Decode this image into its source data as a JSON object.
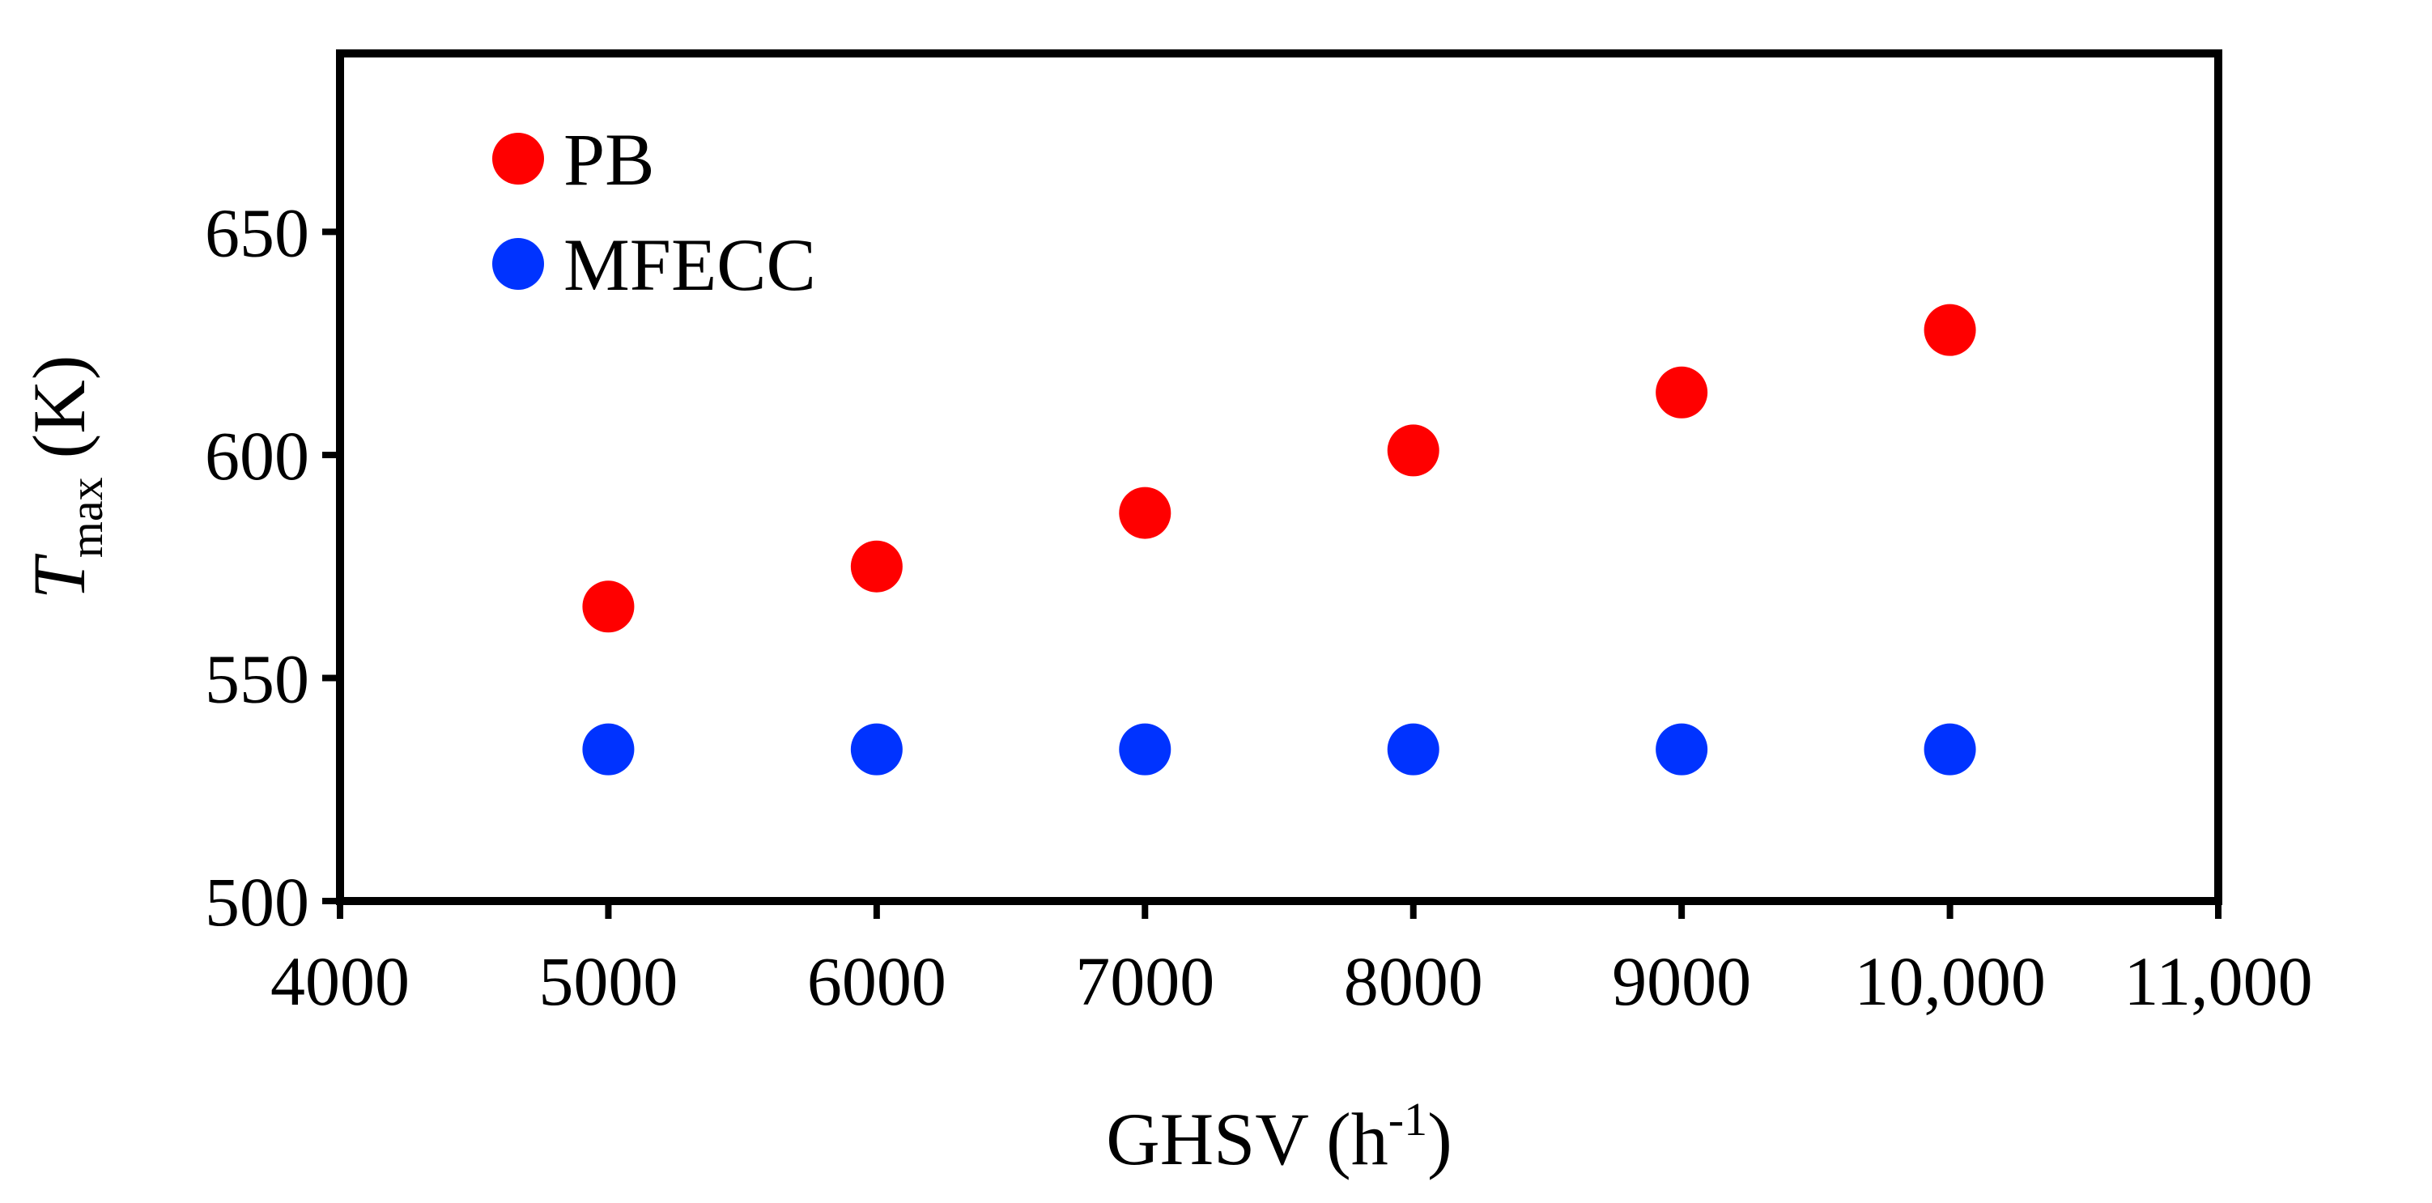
{
  "chart_data": {
    "type": "scatter",
    "title": "",
    "xlabel": "GHSV (h",
    "xlabel_sup": "-1",
    "xlabel_close": ")",
    "ylabel_symbol": "T",
    "ylabel_sub": "max",
    "ylabel_unit": " (K)",
    "xlim": [
      4000,
      11000
    ],
    "ylim": [
      500,
      690
    ],
    "x_ticks": [
      4000,
      5000,
      6000,
      7000,
      8000,
      9000,
      10000,
      11000
    ],
    "x_tick_labels": [
      "4000",
      "5000",
      "6000",
      "7000",
      "8000",
      "9000",
      "10,000",
      "11,000"
    ],
    "y_ticks": [
      500,
      550,
      600,
      650
    ],
    "y_tick_labels": [
      "500",
      "550",
      "600",
      "650"
    ],
    "grid": false,
    "legend_position": "top-left",
    "series": [
      {
        "name": "PB",
        "color": "#ff0000",
        "x": [
          5000,
          6000,
          7000,
          8000,
          9000,
          10000
        ],
        "y": [
          566,
          575,
          587,
          601,
          614,
          628
        ]
      },
      {
        "name": "MFECC",
        "color": "#0033ff",
        "x": [
          5000,
          6000,
          7000,
          8000,
          9000,
          10000
        ],
        "y": [
          534,
          534,
          534,
          534,
          534,
          534
        ]
      }
    ]
  }
}
